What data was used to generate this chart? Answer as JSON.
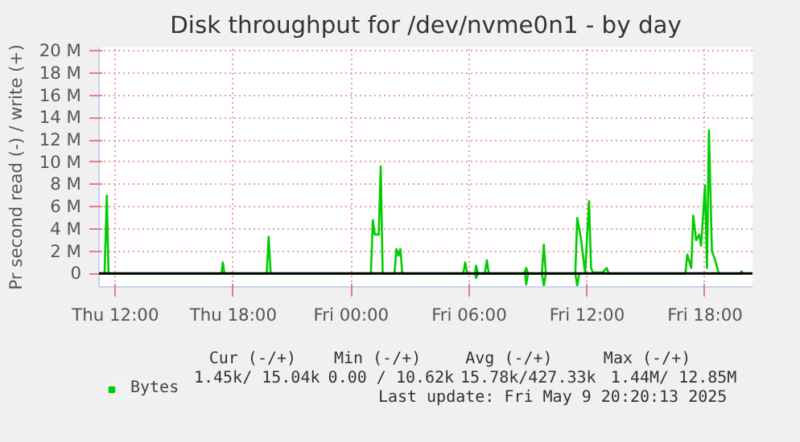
{
  "chart_data": {
    "type": "line",
    "title": "Disk throughput for /dev/nvme0n1 - by day",
    "ylabel": "Pr second read (-) / write (+)",
    "xlim": [
      "2025-05-08T11:10",
      "2025-05-09T20:25"
    ],
    "ylim": [
      -1.2,
      20.3
    ],
    "xticks": [
      {
        "value": "2025-05-08T12:00",
        "label": "Thu 12:00"
      },
      {
        "value": "2025-05-08T18:00",
        "label": "Thu 18:00"
      },
      {
        "value": "2025-05-09T00:00",
        "label": "Fri 00:00"
      },
      {
        "value": "2025-05-09T06:00",
        "label": "Fri 06:00"
      },
      {
        "value": "2025-05-09T12:00",
        "label": "Fri 12:00"
      },
      {
        "value": "2025-05-09T18:00",
        "label": "Fri 18:00"
      }
    ],
    "yticks": [
      0,
      {
        "value": 2,
        "label": "2 M"
      },
      {
        "value": 4,
        "label": "4 M"
      },
      {
        "value": 6,
        "label": "6 M"
      },
      {
        "value": 8,
        "label": "8 M"
      },
      {
        "value": 10,
        "label": "10 M"
      },
      {
        "value": 12,
        "label": "12 M"
      },
      {
        "value": 14,
        "label": "14 M"
      },
      {
        "value": 16,
        "label": "16 M"
      },
      {
        "value": 18,
        "label": "18 M"
      },
      {
        "value": 20,
        "label": "20 M"
      }
    ],
    "grid": true,
    "legend": "bottom left",
    "line_style": "solid",
    "ref_lines": [
      {
        "axis": "y",
        "value": 0,
        "label": null,
        "color": "#000000"
      }
    ],
    "series": [
      {
        "name": "Bytes",
        "color": "#00cc00",
        "x": [
          "2025-05-08T11:15",
          "2025-05-08T11:27",
          "2025-05-08T11:34",
          "2025-05-08T11:39",
          "2025-05-08T17:24",
          "2025-05-08T17:28",
          "2025-05-08T17:33",
          "2025-05-08T19:42",
          "2025-05-08T19:48",
          "2025-05-08T19:54",
          "2025-05-09T01:00",
          "2025-05-09T01:06",
          "2025-05-09T01:12",
          "2025-05-09T01:24",
          "2025-05-09T01:30",
          "2025-05-09T01:36",
          "2025-05-09T02:12",
          "2025-05-09T02:18",
          "2025-05-09T02:24",
          "2025-05-09T02:30",
          "2025-05-09T02:36",
          "2025-05-09T05:42",
          "2025-05-09T05:48",
          "2025-05-09T05:54",
          "2025-05-09T06:18",
          "2025-05-09T06:21",
          "2025-05-09T06:27",
          "2025-05-09T06:48",
          "2025-05-09T06:54",
          "2025-05-09T07:00",
          "2025-05-09T08:48",
          "2025-05-09T08:54",
          "2025-05-09T09:00",
          "2025-05-09T09:42",
          "2025-05-09T09:48",
          "2025-05-09T09:54",
          "2025-05-09T11:24",
          "2025-05-09T11:30",
          "2025-05-09T11:42",
          "2025-05-09T11:54",
          "2025-05-09T12:06",
          "2025-05-09T12:12",
          "2025-05-09T12:18",
          "2025-05-09T12:48",
          "2025-05-09T13:00",
          "2025-05-09T13:06",
          "2025-05-09T17:00",
          "2025-05-09T17:06",
          "2025-05-09T17:18",
          "2025-05-09T17:24",
          "2025-05-09T17:33",
          "2025-05-09T17:42",
          "2025-05-09T17:48",
          "2025-05-09T18:00",
          "2025-05-09T18:06",
          "2025-05-09T18:12",
          "2025-05-09T18:21",
          "2025-05-09T18:30",
          "2025-05-09T18:42",
          "2025-05-09T19:48",
          "2025-05-09T19:51",
          "2025-05-09T19:57"
        ],
        "values": [
          0,
          0,
          7,
          0,
          0,
          1,
          0,
          0,
          3.3,
          0,
          0,
          4.8,
          3.5,
          3.5,
          9.6,
          0,
          0,
          2.2,
          1.6,
          2.2,
          0,
          0,
          1,
          0,
          0,
          0.7,
          0,
          0,
          1.2,
          0,
          0,
          0.5,
          0,
          0,
          2.6,
          0,
          0,
          5,
          3,
          0,
          6.5,
          0.5,
          0.1,
          0.1,
          0.5,
          0,
          0,
          1.7,
          0.5,
          5.2,
          3,
          3.5,
          2.5,
          7.9,
          0.5,
          12.85,
          2,
          1.3,
          0,
          0,
          0.2,
          0
        ]
      },
      {
        "color": "#00cc00",
        "x": [
          "2025-05-09T06:18",
          "2025-05-09T06:21",
          "2025-05-09T06:27",
          "2025-05-09T08:51",
          "2025-05-09T08:54",
          "2025-05-09T09:00",
          "2025-05-09T09:42",
          "2025-05-09T09:48",
          "2025-05-09T09:54",
          "2025-05-09T11:24",
          "2025-05-09T11:30",
          "2025-05-09T11:36"
        ],
        "values": [
          0,
          -0.4,
          0,
          0,
          -1,
          0,
          0,
          -1.1,
          0,
          0,
          -1.1,
          0
        ]
      }
    ],
    "annotations": [
      "Cur (-/+)",
      "Min (-/+)",
      "Avg (-/+)",
      "Max (-/+)",
      "1.45k/ 15.04k",
      "0.00 / 10.62k",
      "15.78k/427.33k",
      "1.44M/ 12.85M",
      "Last update: Fri May  9 20:20:13 2025"
    ]
  }
}
